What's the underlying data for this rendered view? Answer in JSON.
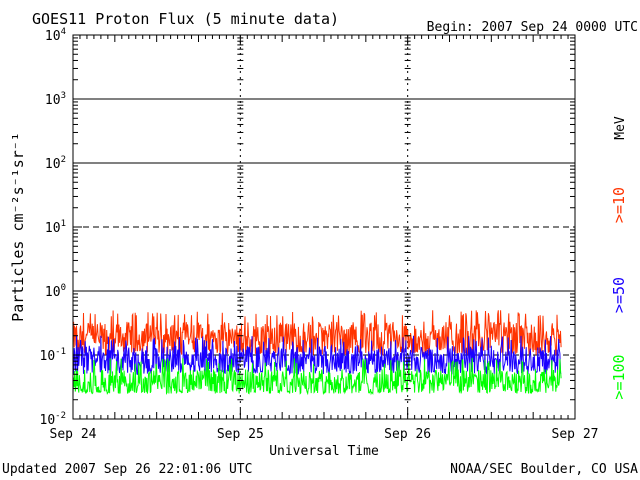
{
  "header": {
    "title": "GOES11 Proton Flux (5 minute data)",
    "begin": "Begin: 2007 Sep 24 0000 UTC"
  },
  "footer": {
    "updated": "Updated 2007 Sep 26 22:01:06 UTC",
    "source": "NOAA/SEC Boulder, CO USA"
  },
  "colors": {
    "ge10": "#ff3300",
    "ge50": "#1a00ff",
    "ge100": "#00ff00",
    "axis": "#000000",
    "background": "#ffffff"
  },
  "chart_data": {
    "type": "line",
    "title": "GOES11 Proton Flux (5 minute data)",
    "xlabel": "Universal Time",
    "ylabel": "Particles cm⁻²s⁻¹sr⁻¹",
    "y_scale": "log",
    "ylim": [
      0.01,
      10000
    ],
    "xlim": [
      "2007-09-24 00:00",
      "2007-09-27 00:00"
    ],
    "x_ticks": [
      "Sep 24",
      "Sep 25",
      "Sep 26",
      "Sep 27"
    ],
    "y_ticks": [
      {
        "base": "10",
        "exp": "4"
      },
      {
        "base": "10",
        "exp": "3"
      },
      {
        "base": "10",
        "exp": "2"
      },
      {
        "base": "10",
        "exp": "1"
      },
      {
        "base": "10",
        "exp": "0"
      },
      {
        "base": "10",
        "exp": "-1"
      },
      {
        "base": "10",
        "exp": "-2"
      }
    ],
    "unit_label": "MeV",
    "grid": true,
    "data_end": "2007-09-26 22:00",
    "series": [
      {
        "name": ">=10",
        "color": "#ff3300",
        "typical": 0.2,
        "min": 0.1,
        "max": 0.5
      },
      {
        "name": ">=50",
        "color": "#1a00ff",
        "typical": 0.09,
        "min": 0.05,
        "max": 0.2
      },
      {
        "name": ">=100",
        "color": "#00ff00",
        "typical": 0.04,
        "min": 0.025,
        "max": 0.09
      }
    ]
  }
}
